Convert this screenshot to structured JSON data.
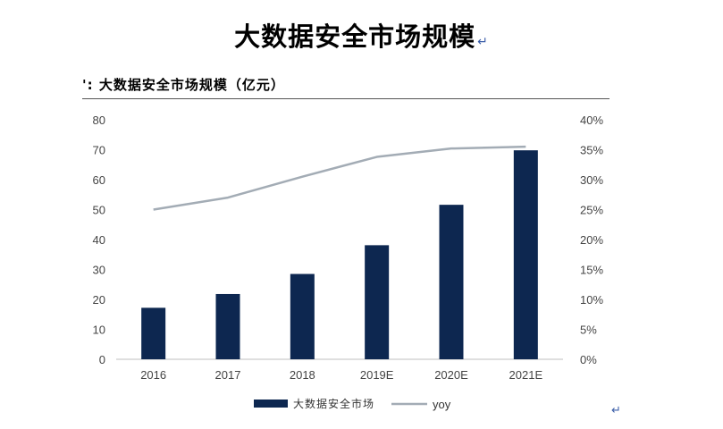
{
  "document": {
    "title": "大数据安全市场规模",
    "return_mark": "↵",
    "trailing_return_mark": "↵"
  },
  "figure": {
    "caption": "': 大数据安全市场规模（亿元）"
  },
  "chart_data": {
    "type": "bar",
    "categories": [
      "2016",
      "2017",
      "2018",
      "2019E",
      "2020E",
      "2021E"
    ],
    "series": [
      {
        "name": "大数据安全市场",
        "type": "bar",
        "axis": "left",
        "values": [
          17.2,
          21.8,
          28.5,
          38.1,
          51.6,
          69.8
        ],
        "color": "#0d2750"
      },
      {
        "name": "yoy",
        "type": "line",
        "axis": "right",
        "values": [
          0.25,
          0.27,
          0.305,
          0.338,
          0.352,
          0.355
        ],
        "color": "#a3acb5"
      }
    ],
    "left_axis": {
      "ticks": [
        "80",
        "70",
        "60",
        "50",
        "40",
        "30",
        "20",
        "10",
        "0"
      ],
      "ylim": [
        0,
        80
      ]
    },
    "right_axis": {
      "ticks": [
        "40%",
        "35%",
        "30%",
        "25%",
        "20%",
        "15%",
        "10%",
        "5%",
        "0%"
      ],
      "ylim": [
        0,
        0.4
      ]
    },
    "grid": false,
    "legend_position": "bottom"
  }
}
